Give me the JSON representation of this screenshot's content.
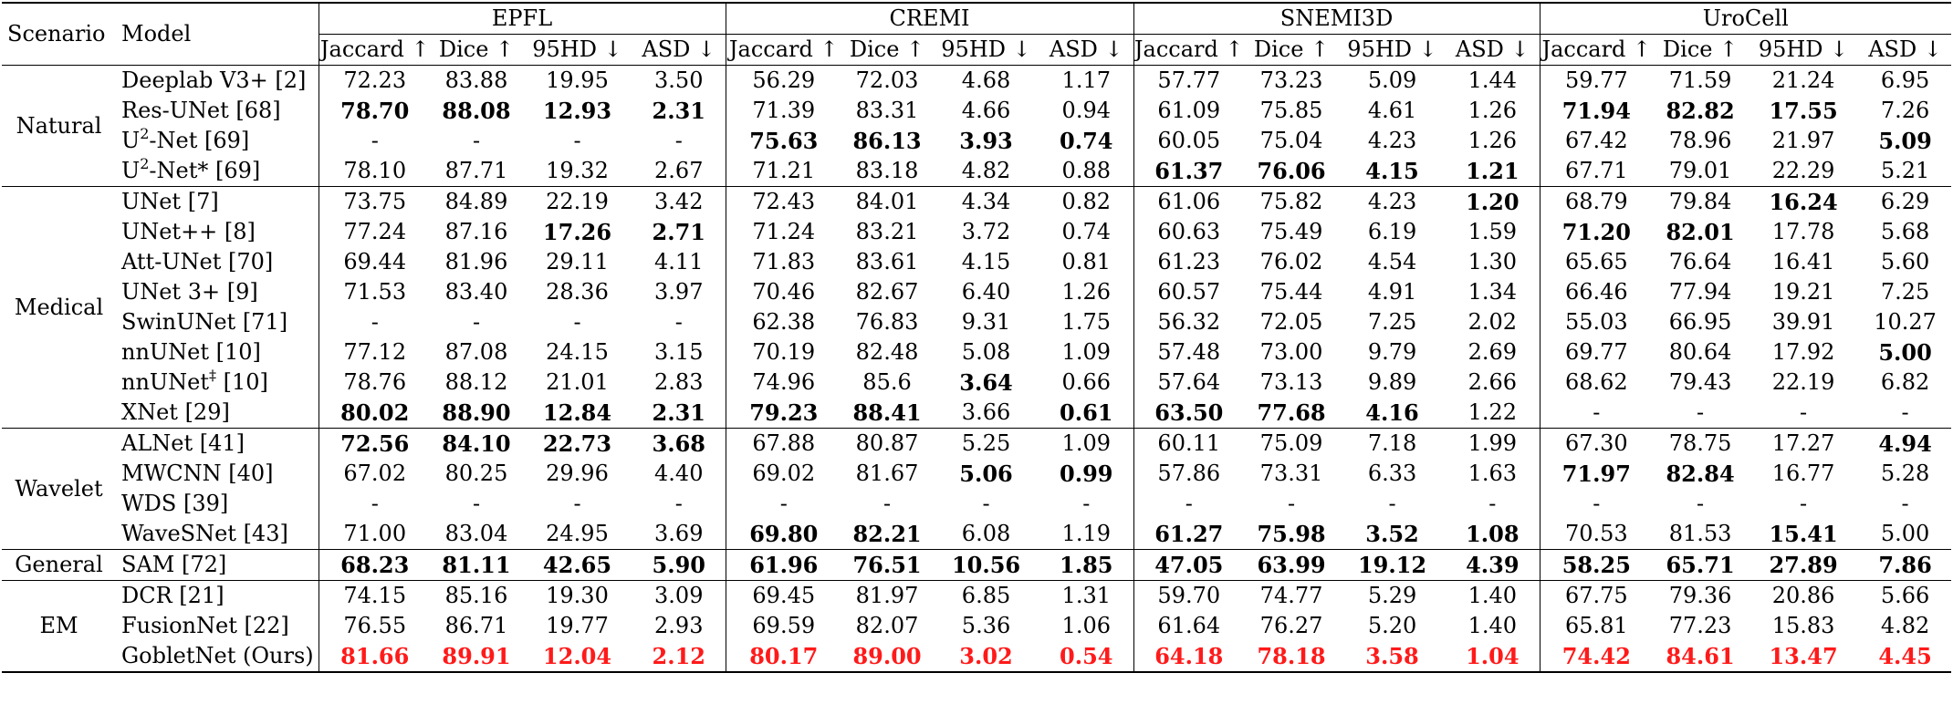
{
  "columns": {
    "scenario": "Scenario",
    "model": "Model",
    "datasets": [
      "EPFL",
      "CREMI",
      "SNEMI3D",
      "UroCell"
    ],
    "metrics": [
      "Jaccard ↑",
      "Dice ↑",
      "95HD ↓",
      "ASD ↓"
    ]
  },
  "groups": [
    {
      "scenario": "Natural",
      "rows": [
        {
          "model": "Deeplab V3+ [2]",
          "values": [
            "72.23",
            "83.88",
            "19.95",
            "3.50",
            "56.29",
            "72.03",
            "4.68",
            "1.17",
            "57.77",
            "73.23",
            "5.09",
            "1.44",
            "59.77",
            "71.59",
            "21.24",
            "6.95"
          ],
          "bold": []
        },
        {
          "model": "Res-UNet [68]",
          "values": [
            "78.70",
            "88.08",
            "12.93",
            "2.31",
            "71.39",
            "83.31",
            "4.66",
            "0.94",
            "61.09",
            "75.85",
            "4.61",
            "1.26",
            "71.94",
            "82.82",
            "17.55",
            "7.26"
          ],
          "bold": [
            0,
            1,
            2,
            3,
            12,
            13,
            14
          ]
        },
        {
          "model": "U",
          "model_sup": "2",
          "model_rest": "-Net [69]",
          "values": [
            "-",
            "-",
            "-",
            "-",
            "75.63",
            "86.13",
            "3.93",
            "0.74",
            "60.05",
            "75.04",
            "4.23",
            "1.26",
            "67.42",
            "78.96",
            "21.97",
            "5.09"
          ],
          "bold": [
            4,
            5,
            6,
            7,
            15
          ]
        },
        {
          "model": "U",
          "model_sup": "2",
          "model_rest": "-Net* [69]",
          "values": [
            "78.10",
            "87.71",
            "19.32",
            "2.67",
            "71.21",
            "83.18",
            "4.82",
            "0.88",
            "61.37",
            "76.06",
            "4.15",
            "1.21",
            "67.71",
            "79.01",
            "22.29",
            "5.21"
          ],
          "bold": [
            8,
            9,
            10,
            11
          ]
        }
      ]
    },
    {
      "scenario": "Medical",
      "rows": [
        {
          "model": "UNet [7]",
          "values": [
            "73.75",
            "84.89",
            "22.19",
            "3.42",
            "72.43",
            "84.01",
            "4.34",
            "0.82",
            "61.06",
            "75.82",
            "4.23",
            "1.20",
            "68.79",
            "79.84",
            "16.24",
            "6.29"
          ],
          "bold": [
            11,
            14
          ]
        },
        {
          "model": "UNet++ [8]",
          "values": [
            "77.24",
            "87.16",
            "17.26",
            "2.71",
            "71.24",
            "83.21",
            "3.72",
            "0.74",
            "60.63",
            "75.49",
            "6.19",
            "1.59",
            "71.20",
            "82.01",
            "17.78",
            "5.68"
          ],
          "bold": [
            2,
            3,
            12,
            13
          ]
        },
        {
          "model": "Att-UNet [70]",
          "values": [
            "69.44",
            "81.96",
            "29.11",
            "4.11",
            "71.83",
            "83.61",
            "4.15",
            "0.81",
            "61.23",
            "76.02",
            "4.54",
            "1.30",
            "65.65",
            "76.64",
            "16.41",
            "5.60"
          ],
          "bold": []
        },
        {
          "model": "UNet 3+ [9]",
          "values": [
            "71.53",
            "83.40",
            "28.36",
            "3.97",
            "70.46",
            "82.67",
            "6.40",
            "1.26",
            "60.57",
            "75.44",
            "4.91",
            "1.34",
            "66.46",
            "77.94",
            "19.21",
            "7.25"
          ],
          "bold": []
        },
        {
          "model": "SwinUNet [71]",
          "values": [
            "-",
            "-",
            "-",
            "-",
            "62.38",
            "76.83",
            "9.31",
            "1.75",
            "56.32",
            "72.05",
            "7.25",
            "2.02",
            "55.03",
            "66.95",
            "39.91",
            "10.27"
          ],
          "bold": []
        },
        {
          "model": "nnUNet [10]",
          "values": [
            "77.12",
            "87.08",
            "24.15",
            "3.15",
            "70.19",
            "82.48",
            "5.08",
            "1.09",
            "57.48",
            "73.00",
            "9.79",
            "2.69",
            "69.77",
            "80.64",
            "17.92",
            "5.00"
          ],
          "bold": [
            15
          ]
        },
        {
          "model": "nnUNet",
          "model_sup": "‡",
          "model_rest": " [10]",
          "values": [
            "78.76",
            "88.12",
            "21.01",
            "2.83",
            "74.96",
            "85.6",
            "3.64",
            "0.66",
            "57.64",
            "73.13",
            "9.89",
            "2.66",
            "68.62",
            "79.43",
            "22.19",
            "6.82"
          ],
          "bold": [
            6
          ]
        },
        {
          "model": "XNet [29]",
          "values": [
            "80.02",
            "88.90",
            "12.84",
            "2.31",
            "79.23",
            "88.41",
            "3.66",
            "0.61",
            "63.50",
            "77.68",
            "4.16",
            "1.22",
            "-",
            "-",
            "-",
            "-"
          ],
          "bold": [
            0,
            1,
            2,
            3,
            4,
            5,
            7,
            8,
            9,
            10
          ]
        }
      ]
    },
    {
      "scenario": "Wavelet",
      "rows": [
        {
          "model": "ALNet [41]",
          "values": [
            "72.56",
            "84.10",
            "22.73",
            "3.68",
            "67.88",
            "80.87",
            "5.25",
            "1.09",
            "60.11",
            "75.09",
            "7.18",
            "1.99",
            "67.30",
            "78.75",
            "17.27",
            "4.94"
          ],
          "bold": [
            0,
            1,
            2,
            3,
            15
          ]
        },
        {
          "model": "MWCNN [40]",
          "values": [
            "67.02",
            "80.25",
            "29.96",
            "4.40",
            "69.02",
            "81.67",
            "5.06",
            "0.99",
            "57.86",
            "73.31",
            "6.33",
            "1.63",
            "71.97",
            "82.84",
            "16.77",
            "5.28"
          ],
          "bold": [
            6,
            7,
            12,
            13
          ]
        },
        {
          "model": "WDS [39]",
          "values": [
            "-",
            "-",
            "-",
            "-",
            "-",
            "-",
            "-",
            "-",
            "-",
            "-",
            "-",
            "-",
            "-",
            "-",
            "-",
            "-"
          ],
          "bold": []
        },
        {
          "model": "WaveSNet [43]",
          "values": [
            "71.00",
            "83.04",
            "24.95",
            "3.69",
            "69.80",
            "82.21",
            "6.08",
            "1.19",
            "61.27",
            "75.98",
            "3.52",
            "1.08",
            "70.53",
            "81.53",
            "15.41",
            "5.00"
          ],
          "bold": [
            4,
            5,
            8,
            9,
            10,
            11,
            14
          ]
        }
      ]
    },
    {
      "scenario": "General",
      "rows": [
        {
          "model": "SAM [72]",
          "values": [
            "68.23",
            "81.11",
            "42.65",
            "5.90",
            "61.96",
            "76.51",
            "10.56",
            "1.85",
            "47.05",
            "63.99",
            "19.12",
            "4.39",
            "58.25",
            "65.71",
            "27.89",
            "7.86"
          ],
          "bold": [
            0,
            1,
            2,
            3,
            4,
            5,
            6,
            7,
            8,
            9,
            10,
            11,
            12,
            13,
            14,
            15
          ]
        }
      ]
    },
    {
      "scenario": "EM",
      "rows": [
        {
          "model": "DCR [21]",
          "values": [
            "74.15",
            "85.16",
            "19.30",
            "3.09",
            "69.45",
            "81.97",
            "6.85",
            "1.31",
            "59.70",
            "74.77",
            "5.29",
            "1.40",
            "67.75",
            "79.36",
            "20.86",
            "5.66"
          ],
          "bold": []
        },
        {
          "model": "FusionNet [22]",
          "values": [
            "76.55",
            "86.71",
            "19.77",
            "2.93",
            "69.59",
            "82.07",
            "5.36",
            "1.06",
            "61.64",
            "76.27",
            "5.20",
            "1.40",
            "65.81",
            "77.23",
            "15.83",
            "4.82"
          ],
          "bold": []
        },
        {
          "model": "GobletNet (Ours)",
          "values": [
            "81.66",
            "89.91",
            "12.04",
            "2.12",
            "80.17",
            "89.00",
            "3.02",
            "0.54",
            "64.18",
            "78.18",
            "3.58",
            "1.04",
            "74.42",
            "84.61",
            "13.47",
            "4.45"
          ],
          "bold": [],
          "highlight": true
        }
      ]
    }
  ]
}
